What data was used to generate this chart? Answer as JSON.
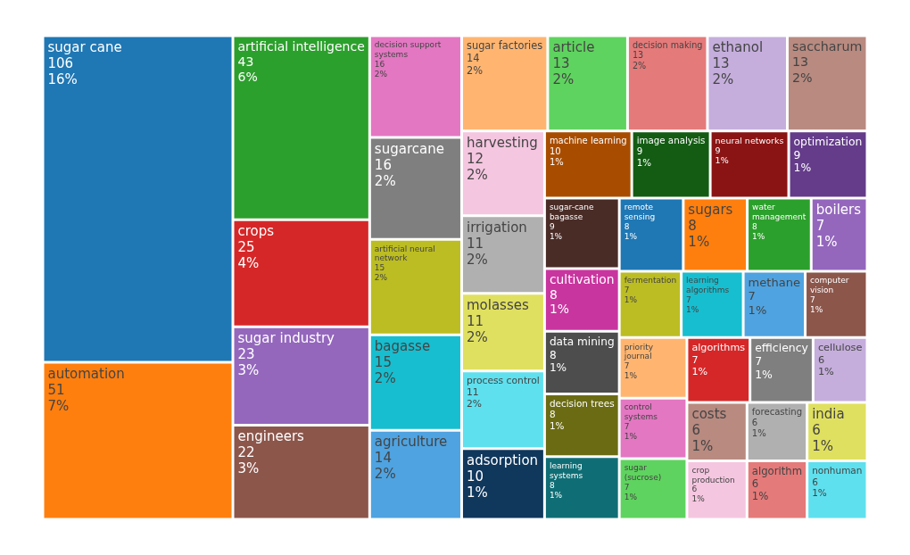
{
  "chart_data": {
    "type": "other",
    "categories": [
      "sugar cane",
      "automation",
      "artificial intelligence",
      "crops",
      "sugar industry",
      "engineers",
      "decision support systems",
      "sugarcane",
      "artificial neural network",
      "bagasse",
      "agriculture",
      "sugar factories",
      "article",
      "decision making",
      "ethanol",
      "saccharum",
      "harvesting",
      "irrigation",
      "molasses",
      "process control",
      "adsorption",
      "machine learning",
      "image analysis",
      "neural networks",
      "optimization",
      "sugar-cane bagasse",
      "cultivation",
      "data mining",
      "decision trees",
      "learning systems",
      "remote sensing",
      "sugars",
      "water management",
      "boilers",
      "fermentation",
      "learning algorithms",
      "methane",
      "computer vision",
      "priority journal",
      "control systems",
      "sugar (sucrose)",
      "algorithms",
      "efficiency",
      "cellulose",
      "costs",
      "crop production",
      "forecasting",
      "algorithm",
      "india",
      "nonhuman"
    ],
    "values": [
      106,
      51,
      43,
      25,
      23,
      22,
      16,
      16,
      15,
      15,
      14,
      14,
      13,
      13,
      13,
      13,
      12,
      11,
      11,
      11,
      10,
      10,
      9,
      9,
      9,
      9,
      8,
      8,
      8,
      8,
      8,
      8,
      8,
      7,
      7,
      7,
      7,
      7,
      7,
      7,
      7,
      7,
      7,
      6,
      6,
      6,
      6,
      6,
      6,
      6
    ],
    "value_labels": [
      "106\n16%",
      "51\n7%",
      "43\n6%",
      "25\n4%",
      "23\n3%",
      "22\n3%",
      "16\n2%",
      "16\n2%",
      "15\n2%",
      "15\n2%",
      "14\n2%",
      "14\n2%",
      "13\n2%",
      "13\n2%",
      "13\n2%",
      "13\n2%",
      "12\n2%",
      "11\n2%",
      "11\n2%",
      "11\n2%",
      "10\n1%",
      "10\n1%",
      "9\n1%",
      "9\n1%",
      "9\n1%",
      "9\n1%",
      "8\n1%",
      "8\n1%",
      "8\n1%",
      "8\n1%",
      "8\n1%",
      "8\n1%",
      "8\n1%",
      "7\n1%",
      "7\n1%",
      "7\n1%",
      "7\n1%",
      "7\n1%",
      "7\n1%",
      "7\n1%",
      "7\n1%",
      "7\n1%",
      "7\n1%",
      "6\n1%",
      "6\n1%",
      "6\n1%",
      "6\n1%",
      "6\n1%",
      "6\n1%",
      "6\n1%"
    ],
    "colors": [
      "#1f77b4",
      "#ff7f0e",
      "#2ca02c",
      "#d62728",
      "#9467bd",
      "#8c564b",
      "#e377c2",
      "#7f7f7f",
      "#bcbd22",
      "#17becf",
      "#4fa3e0",
      "#ffb570",
      "#5fd35f",
      "#e57a7a",
      "#c5aedc",
      "#b88a80",
      "#f5c6e0",
      "#b0b0b0",
      "#e0e060",
      "#5fe0ee",
      "#10375c",
      "#a84d00",
      "#145c14",
      "#8a1414",
      "#643c8a",
      "#4a2c27",
      "#c9359f",
      "#4d4d4d",
      "#6b6b14",
      "#0f6e75",
      "#1f77b4",
      "#ff7f0e",
      "#2ca02c",
      "#9467bd",
      "#bcbd22",
      "#17becf",
      "#4fa3e0",
      "#8c564b",
      "#ffb570",
      "#e377c2",
      "#5fd35f",
      "#d62728",
      "#7f7f7f",
      "#c5aedc",
      "#b88a80",
      "#f5c6e0",
      "#b0b0b0",
      "#e57a7a",
      "#e0e060",
      "#5fe0ee"
    ]
  }
}
